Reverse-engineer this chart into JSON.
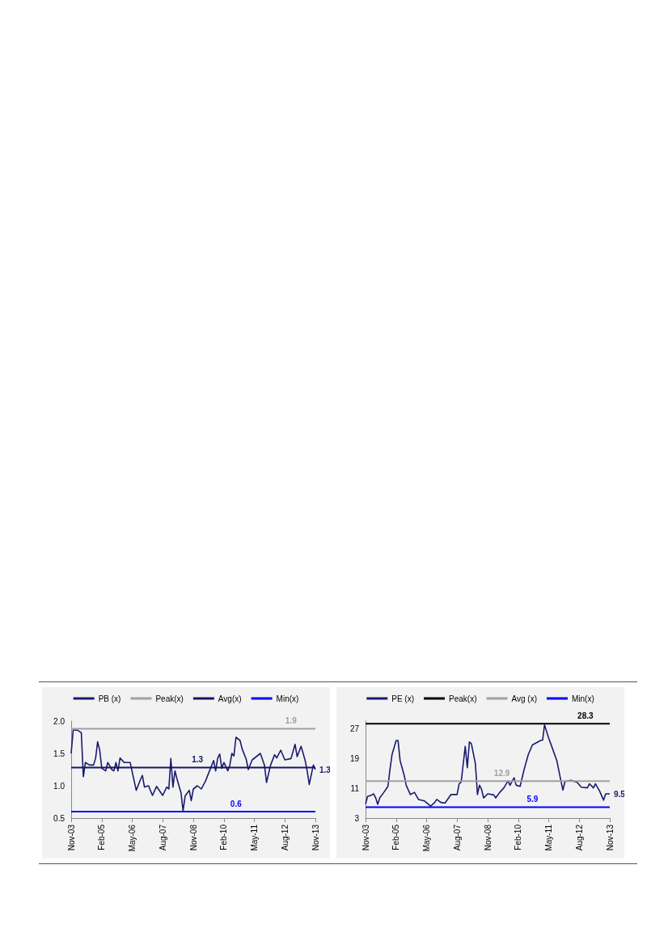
{
  "chart_data": [
    {
      "type": "line",
      "legend": "top",
      "grid": false,
      "marker": "none",
      "xlim": [
        "2003-11",
        "2013-11"
      ],
      "xticks": [
        {
          "value": "2003-11",
          "label": "Nov-03"
        },
        {
          "value": "2005-02",
          "label": "Feb-05"
        },
        {
          "value": "2006-05",
          "label": "May-06"
        },
        {
          "value": "2007-08",
          "label": "Aug-07"
        },
        {
          "value": "2008-11",
          "label": "Nov-08"
        },
        {
          "value": "2010-02",
          "label": "Feb-10"
        },
        {
          "value": "2011-05",
          "label": "May-11"
        },
        {
          "value": "2012-08",
          "label": "Aug-12"
        },
        {
          "value": "2013-11",
          "label": "Nov-13"
        }
      ],
      "ylim": [
        0.5,
        2.0
      ],
      "yticks": [
        {
          "value": 0.5,
          "label": "0.5"
        },
        {
          "value": 1.0,
          "label": "1.0"
        },
        {
          "value": 1.5,
          "label": "1.5"
        },
        {
          "value": 2.0,
          "label": "2.0"
        }
      ],
      "series": [
        {
          "name": "PB (x)",
          "color": "#1a1a6e",
          "x": [
            "2003-11",
            "2003-12",
            "2004-02",
            "2004-04",
            "2004-05",
            "2004-06",
            "2004-08",
            "2004-10",
            "2004-11",
            "2004-12",
            "2005-01",
            "2005-02",
            "2005-04",
            "2005-05",
            "2005-07",
            "2005-08",
            "2005-09",
            "2005-10",
            "2005-11",
            "2006-01",
            "2006-04",
            "2006-07",
            "2006-09",
            "2006-10",
            "2006-11",
            "2007-01",
            "2007-03",
            "2007-05",
            "2007-08",
            "2007-10",
            "2007-11",
            "2007-12",
            "2008-01",
            "2008-02",
            "2008-03",
            "2008-05",
            "2008-06",
            "2008-07",
            "2008-09",
            "2008-10",
            "2008-11",
            "2009-01",
            "2009-03",
            "2009-05",
            "2009-07",
            "2009-09",
            "2009-10",
            "2009-11",
            "2009-12",
            "2010-01",
            "2010-02",
            "2010-04",
            "2010-05",
            "2010-06",
            "2010-07",
            "2010-08",
            "2010-10",
            "2010-11",
            "2011-01",
            "2011-02",
            "2011-04",
            "2011-08",
            "2011-10",
            "2011-11",
            "2012-01",
            "2012-03",
            "2012-04",
            "2012-06",
            "2012-08",
            "2012-11",
            "2013-01",
            "2013-02",
            "2013-04",
            "2013-06",
            "2013-07",
            "2013-08",
            "2013-10",
            "2013-11"
          ],
          "values": [
            1.5,
            1.86,
            1.86,
            1.82,
            1.14,
            1.36,
            1.32,
            1.32,
            1.43,
            1.68,
            1.55,
            1.27,
            1.23,
            1.36,
            1.25,
            1.23,
            1.36,
            1.23,
            1.43,
            1.36,
            1.36,
            0.93,
            1.09,
            1.16,
            0.98,
            1.0,
            0.85,
            0.99,
            0.85,
            0.98,
            0.95,
            1.42,
            0.98,
            1.23,
            1.11,
            0.89,
            0.61,
            0.84,
            0.93,
            0.77,
            0.95,
            1.0,
            0.95,
            1.07,
            1.23,
            1.39,
            1.23,
            1.43,
            1.49,
            1.27,
            1.36,
            1.23,
            1.32,
            1.5,
            1.46,
            1.75,
            1.7,
            1.57,
            1.41,
            1.25,
            1.4,
            1.5,
            1.32,
            1.05,
            1.32,
            1.48,
            1.43,
            1.55,
            1.4,
            1.42,
            1.64,
            1.45,
            1.61,
            1.39,
            1.23,
            1.02,
            1.32,
            1.25
          ],
          "value_labels": [
            null,
            null,
            null,
            null,
            null,
            null,
            null,
            null,
            null,
            null,
            null,
            null,
            null,
            null,
            null,
            null,
            null,
            null,
            null,
            null,
            null,
            null,
            null,
            null,
            null,
            null,
            null,
            null,
            null,
            null,
            null,
            null,
            null,
            null,
            null,
            null,
            null,
            null,
            null,
            null,
            null,
            null,
            null,
            null,
            null,
            null,
            null,
            null,
            null,
            null,
            null,
            null,
            null,
            null,
            null,
            null,
            null,
            null,
            null,
            null,
            null,
            null,
            null,
            null,
            null,
            null,
            null,
            null,
            null,
            null,
            null,
            null,
            null,
            null,
            null,
            null,
            null,
            "1.3"
          ]
        },
        {
          "name": "Peak(x)",
          "color": "#a0a0a0",
          "x": [
            "2003-11",
            "2012-11",
            "2013-11"
          ],
          "values": [
            1.88,
            1.88,
            1.88
          ],
          "value_labels": [
            null,
            "1.9",
            null
          ]
        },
        {
          "name": "Avg(x)",
          "color": "#141464",
          "x": [
            "2003-11",
            "2009-01",
            "2013-11"
          ],
          "values": [
            1.28,
            1.28,
            1.28
          ],
          "value_labels": [
            null,
            "1.3",
            null
          ]
        },
        {
          "name": "Min(x)",
          "color": "#0000ff",
          "x": [
            "2003-11",
            "2010-08",
            "2013-11"
          ],
          "values": [
            0.6,
            0.6,
            0.6
          ],
          "value_labels": [
            null,
            "0.6",
            null
          ]
        }
      ]
    },
    {
      "type": "line",
      "legend": "top",
      "grid": false,
      "marker": "none",
      "xlim": [
        "2003-11",
        "2013-11"
      ],
      "xticks": [
        {
          "value": "2003-11",
          "label": "Nov-03"
        },
        {
          "value": "2005-02",
          "label": "Feb-05"
        },
        {
          "value": "2006-05",
          "label": "May-06"
        },
        {
          "value": "2007-08",
          "label": "Aug-07"
        },
        {
          "value": "2008-11",
          "label": "Nov-08"
        },
        {
          "value": "2010-02",
          "label": "Feb-10"
        },
        {
          "value": "2011-05",
          "label": "May-11"
        },
        {
          "value": "2012-08",
          "label": "Aug-12"
        },
        {
          "value": "2013-11",
          "label": "Nov-13"
        }
      ],
      "ylim": [
        3,
        29
      ],
      "yticks": [
        3,
        11,
        19,
        27
      ],
      "series": [
        {
          "name": "PE (x)",
          "color": "#1a1a6e",
          "x": [
            "2003-11",
            "2003-12",
            "2004-02",
            "2004-03",
            "2004-04",
            "2004-05",
            "2004-06",
            "2004-08",
            "2004-10",
            "2004-11",
            "2004-12",
            "2005-02",
            "2005-03",
            "2005-04",
            "2005-06",
            "2005-07",
            "2005-09",
            "2005-11",
            "2006-01",
            "2006-04",
            "2006-07",
            "2006-09",
            "2006-10",
            "2006-12",
            "2007-02",
            "2007-05",
            "2007-08",
            "2007-09",
            "2007-10",
            "2007-12",
            "2008-01",
            "2008-02",
            "2008-03",
            "2008-05",
            "2008-06",
            "2008-07",
            "2008-08",
            "2008-09",
            "2008-11",
            "2009-02",
            "2009-03",
            "2009-05",
            "2009-07",
            "2009-09",
            "2009-10",
            "2009-12",
            "2010-01",
            "2010-03",
            "2010-05",
            "2010-07",
            "2010-09",
            "2011-01",
            "2011-02",
            "2011-03",
            "2011-05",
            "2011-07",
            "2011-09",
            "2011-11",
            "2011-12",
            "2012-01",
            "2012-04",
            "2012-07",
            "2012-09",
            "2012-12",
            "2013-01",
            "2013-03",
            "2013-04",
            "2013-06",
            "2013-08",
            "2013-09",
            "2013-11"
          ],
          "values": [
            6.8,
            8.8,
            9.2,
            9.5,
            8.4,
            6.7,
            8.4,
            9.9,
            11.5,
            16.1,
            20.0,
            23.8,
            23.8,
            18.4,
            14.5,
            11.8,
            9.3,
            9.9,
            8.0,
            7.6,
            6.2,
            7.2,
            8.0,
            7.2,
            7.0,
            9.3,
            9.3,
            12.2,
            12.6,
            22.2,
            16.5,
            23.4,
            23.0,
            17.6,
            9.3,
            11.8,
            10.7,
            8.4,
            9.5,
            9.2,
            8.4,
            9.9,
            11.1,
            13.0,
            11.8,
            13.8,
            11.8,
            11.5,
            16.1,
            20.0,
            22.6,
            23.8,
            23.9,
            28.0,
            24.5,
            21.5,
            18.4,
            13.0,
            10.5,
            12.8,
            13.1,
            12.6,
            11.3,
            11.1,
            12.2,
            11.1,
            12.2,
            10.3,
            7.8,
            9.5,
            9.5
          ],
          "value_labels": [
            null,
            null,
            null,
            null,
            null,
            null,
            null,
            null,
            null,
            null,
            null,
            null,
            null,
            null,
            null,
            null,
            null,
            null,
            null,
            null,
            null,
            null,
            null,
            null,
            null,
            null,
            null,
            null,
            null,
            null,
            null,
            null,
            null,
            null,
            null,
            null,
            null,
            null,
            null,
            null,
            null,
            null,
            null,
            null,
            null,
            null,
            null,
            null,
            null,
            null,
            null,
            null,
            null,
            null,
            null,
            null,
            null,
            null,
            null,
            null,
            null,
            null,
            null,
            null,
            null,
            null,
            null,
            null,
            null,
            null,
            "9.5"
          ]
        },
        {
          "name": "Peak(x)",
          "color": "#000000",
          "x": [
            "2003-11",
            "2012-11",
            "2013-11"
          ],
          "values": [
            28.3,
            28.3,
            28.3
          ],
          "value_labels": [
            null,
            "28.3",
            null
          ]
        },
        {
          "name": "Avg (x)",
          "color": "#a0a0a0",
          "x": [
            "2003-11",
            "2009-06",
            "2013-11"
          ],
          "values": [
            12.9,
            12.9,
            12.9
          ],
          "value_labels": [
            null,
            "12.9",
            null
          ]
        },
        {
          "name": "Min(x)",
          "color": "#0000ff",
          "x": [
            "2003-11",
            "2010-09",
            "2013-11"
          ],
          "values": [
            5.9,
            5.9,
            5.9
          ],
          "value_labels": [
            null,
            "5.9",
            null
          ]
        }
      ]
    }
  ]
}
